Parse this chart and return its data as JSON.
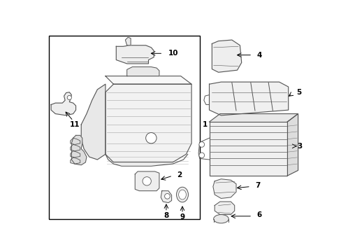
{
  "background_color": "#ffffff",
  "border_color": "#000000",
  "line_color": "#555555",
  "text_color": "#000000"
}
